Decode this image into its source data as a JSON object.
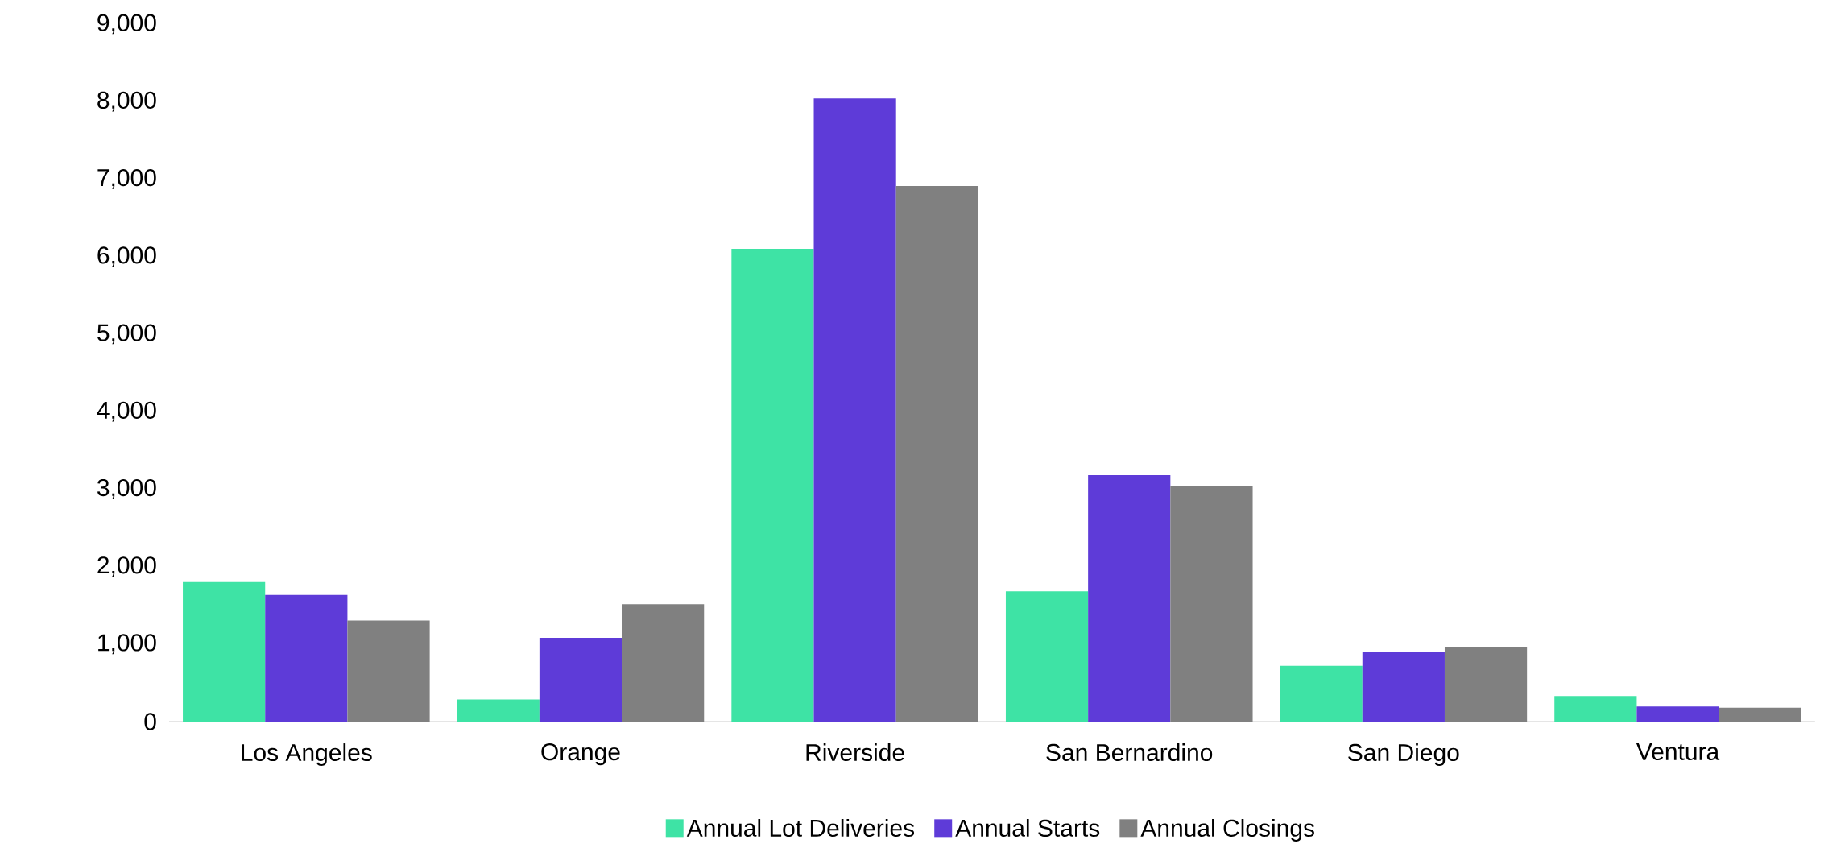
{
  "chart_data": {
    "type": "bar",
    "categories": [
      "Los Angeles",
      "Orange",
      "Riverside",
      "San Bernardino",
      "San Diego",
      "Ventura"
    ],
    "series": [
      {
        "name": "Annual Lot Deliveries",
        "color": "#3ee3a5",
        "values": [
          1800,
          285,
          6100,
          1680,
          720,
          330
        ]
      },
      {
        "name": "Annual Starts",
        "color": "#5e3bd8",
        "values": [
          1635,
          1080,
          8040,
          3180,
          900,
          195
        ]
      },
      {
        "name": "Annual Closings",
        "color": "#808080",
        "values": [
          1305,
          1515,
          6910,
          3045,
          960,
          180
        ]
      }
    ],
    "ylim": [
      0,
      9000
    ],
    "yticks": [
      0,
      {
        "value": 1000,
        "label": "1,000"
      },
      {
        "value": 2000,
        "label": "2,000"
      },
      {
        "value": 3000,
        "label": "3,000"
      },
      {
        "value": 4000,
        "label": "4,000"
      },
      {
        "value": 5000,
        "label": "5,000"
      },
      {
        "value": 6000,
        "label": "6,000"
      },
      {
        "value": 7000,
        "label": "7,000"
      },
      {
        "value": 8000,
        "label": "8,000"
      },
      {
        "value": 9000,
        "label": "9,000"
      }
    ],
    "grid": false,
    "legend": "bottom"
  }
}
